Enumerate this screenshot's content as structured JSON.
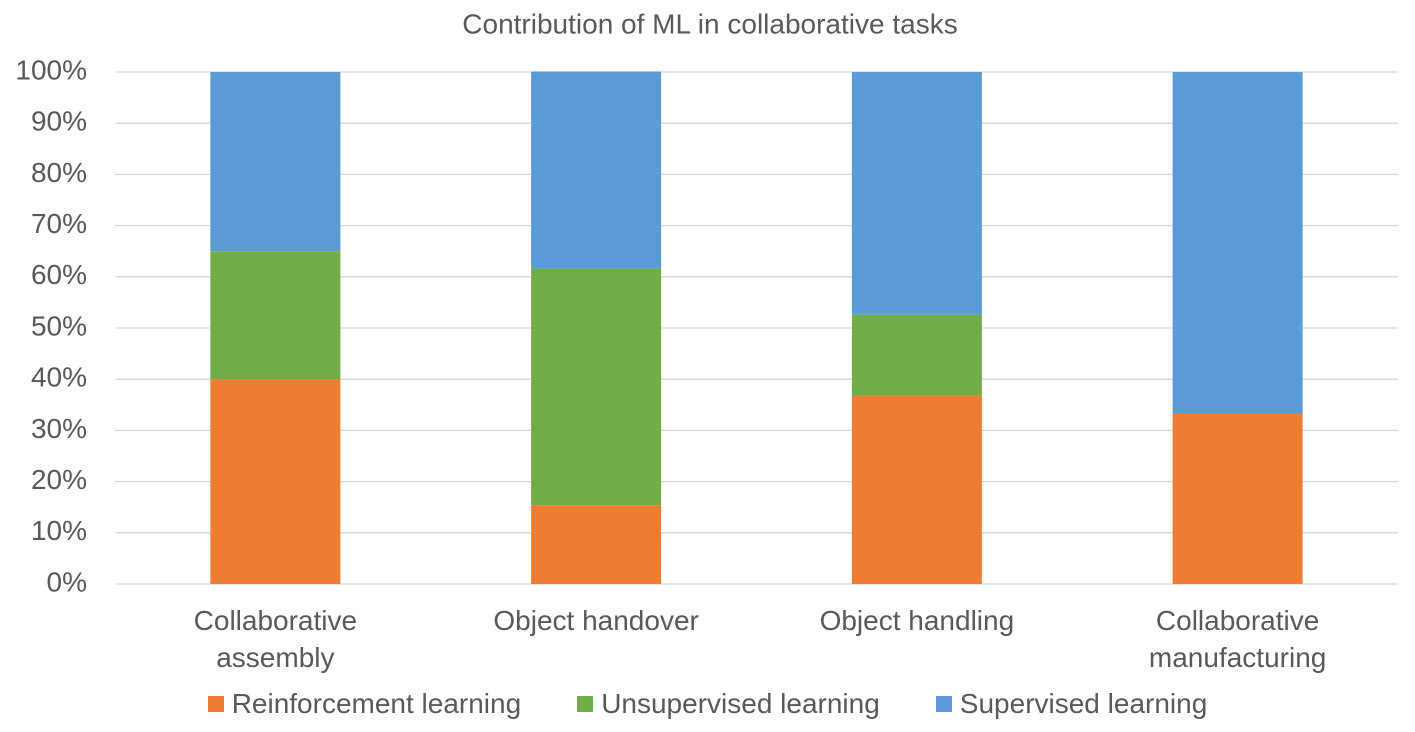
{
  "chart_data": {
    "type": "stacked_bar_100",
    "title": "Contribution of ML in collaborative tasks",
    "categories": [
      "Collaborative assembly",
      "Object handover",
      "Object handling",
      "Collaborative manufacturing"
    ],
    "series": [
      {
        "name": "Reinforcement learning",
        "color": "#ed7d31",
        "values": [
          40,
          15.4,
          36.8,
          33.3
        ]
      },
      {
        "name": "Unsupervised learning",
        "color": "#70ad47",
        "values": [
          25,
          46.2,
          15.8,
          0
        ]
      },
      {
        "name": "Supervised learning",
        "color": "#5b9bd5",
        "values": [
          35,
          38.5,
          47.4,
          66.7
        ]
      }
    ],
    "ylim": [
      0,
      100
    ],
    "yticks": [
      {
        "value": 0,
        "label": "0%"
      },
      {
        "value": 10,
        "label": "10%"
      },
      {
        "value": 20,
        "label": "20%"
      },
      {
        "value": 30,
        "label": "30%"
      },
      {
        "value": 40,
        "label": "40%"
      },
      {
        "value": 50,
        "label": "50%"
      },
      {
        "value": 60,
        "label": "60%"
      },
      {
        "value": 70,
        "label": "70%"
      },
      {
        "value": 80,
        "label": "80%"
      },
      {
        "value": 90,
        "label": "90%"
      },
      {
        "value": 100,
        "label": "100%"
      }
    ],
    "grid": true,
    "legend": "bottom"
  }
}
